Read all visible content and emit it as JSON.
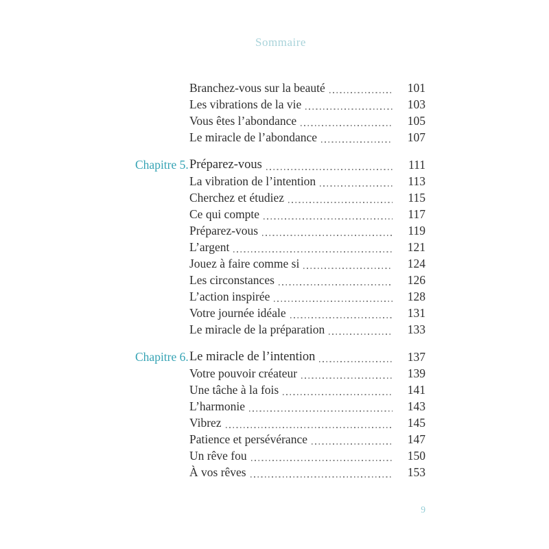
{
  "page": {
    "header_title": "Sommaire",
    "footer_page_number": "9"
  },
  "colors": {
    "accent_teal": "#35a3b4",
    "header_teal": "#a9d3da",
    "folio_teal": "#93cdd6",
    "text": "#2e2e2e",
    "dot_leader": "#858585",
    "page_bg": "#ffffff"
  },
  "toc": {
    "rows": [
      {
        "label": "",
        "title": "Branchez-vous sur la beauté",
        "page": "101",
        "chapter": false
      },
      {
        "label": "",
        "title": "Les vibrations de la vie",
        "page": "103",
        "chapter": false
      },
      {
        "label": "",
        "title": "Vous êtes l’abondance",
        "page": "105",
        "chapter": false
      },
      {
        "label": "",
        "title": "Le miracle de l’abondance",
        "page": "107",
        "chapter": false
      },
      {
        "label": "Chapitre 5.",
        "title": "Préparez-vous",
        "page": "111",
        "chapter": true
      },
      {
        "label": "",
        "title": "La vibration de l’intention",
        "page": "113",
        "chapter": false
      },
      {
        "label": "",
        "title": "Cherchez et étudiez",
        "page": "115",
        "chapter": false
      },
      {
        "label": "",
        "title": "Ce qui compte",
        "page": "117",
        "chapter": false
      },
      {
        "label": "",
        "title": "Préparez-vous",
        "page": "119",
        "chapter": false
      },
      {
        "label": "",
        "title": "L’argent",
        "page": "121",
        "chapter": false
      },
      {
        "label": "",
        "title": "Jouez à faire comme si",
        "page": "124",
        "chapter": false
      },
      {
        "label": "",
        "title": "Les circonstances",
        "page": "126",
        "chapter": false
      },
      {
        "label": "",
        "title": "L’action inspirée",
        "page": "128",
        "chapter": false
      },
      {
        "label": "",
        "title": "Votre journée idéale",
        "page": "131",
        "chapter": false
      },
      {
        "label": "",
        "title": "Le miracle de la préparation",
        "page": "133",
        "chapter": false
      },
      {
        "label": "Chapitre 6.",
        "title": "Le miracle de l’intention",
        "page": "137",
        "chapter": true
      },
      {
        "label": "",
        "title": "Votre pouvoir créateur",
        "page": "139",
        "chapter": false
      },
      {
        "label": "",
        "title": "Une tâche à la fois",
        "page": "141",
        "chapter": false
      },
      {
        "label": "",
        "title": "L’harmonie",
        "page": "143",
        "chapter": false
      },
      {
        "label": "",
        "title": "Vibrez",
        "page": "145",
        "chapter": false
      },
      {
        "label": "",
        "title": "Patience et persévérance",
        "page": "147",
        "chapter": false
      },
      {
        "label": "",
        "title": "Un rêve fou",
        "page": "150",
        "chapter": false
      },
      {
        "label": "",
        "title": "À vos rêves",
        "page": "153",
        "chapter": false
      }
    ]
  }
}
